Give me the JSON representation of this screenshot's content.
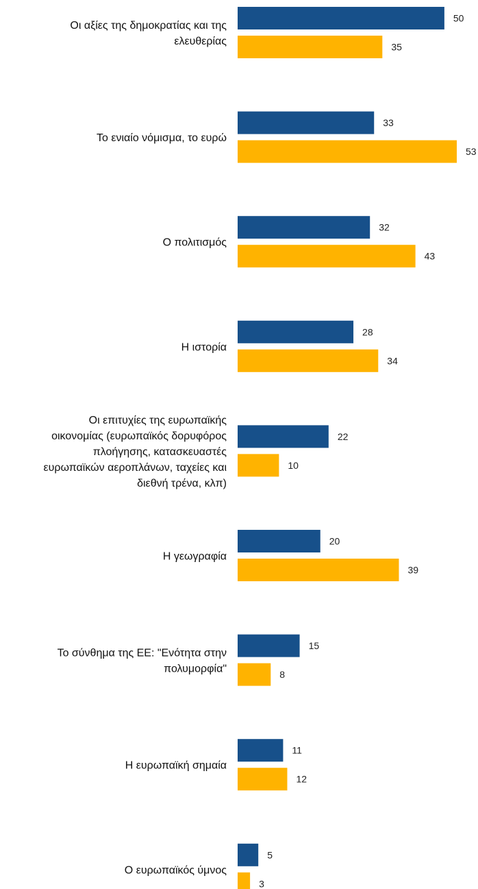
{
  "chart_data": {
    "type": "bar",
    "orientation": "horizontal",
    "categories": [
      "Οι αξίες της δημοκρατίας και της ελευθερίας",
      "Το ενιαίο νόμισμα, το ευρώ",
      "Ο πολιτισμός",
      "Η ιστορία",
      "Οι επιτυχίες της ευρωπαϊκής οικονομίας (ευρωπαϊκός δορυφόρος πλοήγησης, κατασκευαστές ευρωπαϊκών αεροπλάνων, ταχείες και διεθνή τρένα, κλπ)",
      "Η γεωγραφία",
      "Το σύνθημα της ΕΕ: \"Ενότητα στην πολυμορφία\"",
      "Η ευρωπαϊκή σημαία",
      "Ο ευρωπαϊκός ύμνος"
    ],
    "category_lines": [
      [
        "Οι αξίες της δημοκρατίας και της",
        "ελευθερίας"
      ],
      [
        "Το ενιαίο νόμισμα, το ευρώ"
      ],
      [
        "Ο πολιτισμός"
      ],
      [
        "Η ιστορία"
      ],
      [
        "Οι επιτυχίες της ευρωπαϊκής",
        "οικονομίας (ευρωπαϊκός δορυφόρος",
        "πλοήγησης, κατασκευαστές",
        "ευρωπαϊκών αεροπλάνων, ταχείες και",
        "διεθνή τρένα, κλπ)"
      ],
      [
        "Η γεωγραφία"
      ],
      [
        "Το σύνθημα της ΕΕ: \"Ενότητα στην",
        "πολυμορφία\""
      ],
      [
        "Η ευρωπαϊκή σημαία"
      ],
      [
        "Ο ευρωπαϊκός ύμνος"
      ]
    ],
    "series": [
      {
        "color": "#17508a",
        "values": [
          50,
          33,
          32,
          28,
          22,
          20,
          15,
          11,
          5
        ]
      },
      {
        "color": "#ffb300",
        "values": [
          35,
          53,
          43,
          34,
          10,
          39,
          8,
          12,
          3
        ]
      }
    ],
    "xlim": [
      0,
      53
    ],
    "grid": false,
    "legend": "none"
  }
}
